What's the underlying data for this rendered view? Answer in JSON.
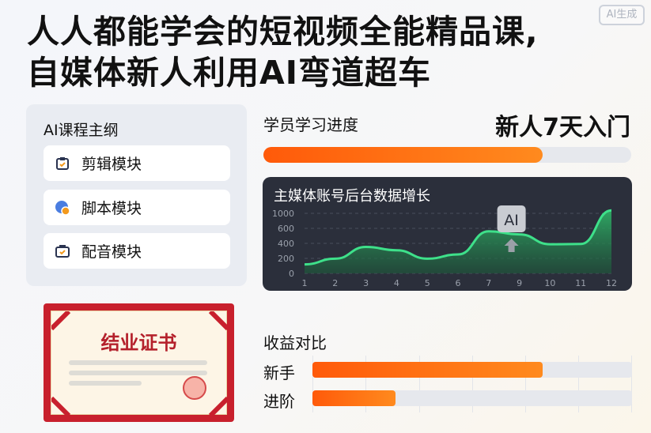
{
  "watermark": "AI生成",
  "headline": {
    "line1": "人人都能学会的短视频全能精品课,",
    "line2": "自媒体新人利用AI弯道超车"
  },
  "outline": {
    "title": "AI课程主纲",
    "items": [
      {
        "label": "剪辑模块",
        "icon": "clipboard-check-icon"
      },
      {
        "label": "脚本模块",
        "icon": "globe-badge-icon"
      },
      {
        "label": "配音模块",
        "icon": "briefcase-check-icon"
      }
    ]
  },
  "progress": {
    "label": "学员学习进度",
    "badge": "新人7天入门",
    "percent": 76,
    "color": "#ff6a12"
  },
  "certificate": {
    "title": "结业证书",
    "border_color": "#c8202d"
  },
  "chart_data": {
    "type": "area",
    "title": "主媒体账号后台数据增长",
    "x": [
      "1",
      "2",
      "3",
      "4",
      "5",
      "6",
      "7",
      "9",
      "10",
      "11",
      "12"
    ],
    "values": [
      150,
      245,
      440,
      385,
      245,
      315,
      700,
      650,
      485,
      490,
      1050
    ],
    "ytick_labels": [
      "0",
      "200",
      "400",
      "600",
      "1000"
    ],
    "ylim": [
      0,
      1000
    ],
    "grid": true,
    "line_color": "#3ee08a",
    "annotation": "AI"
  },
  "income": {
    "title": "收益对比",
    "rows": [
      {
        "label": "新手",
        "percent": 72
      },
      {
        "label": "进阶",
        "percent": 26
      }
    ]
  }
}
